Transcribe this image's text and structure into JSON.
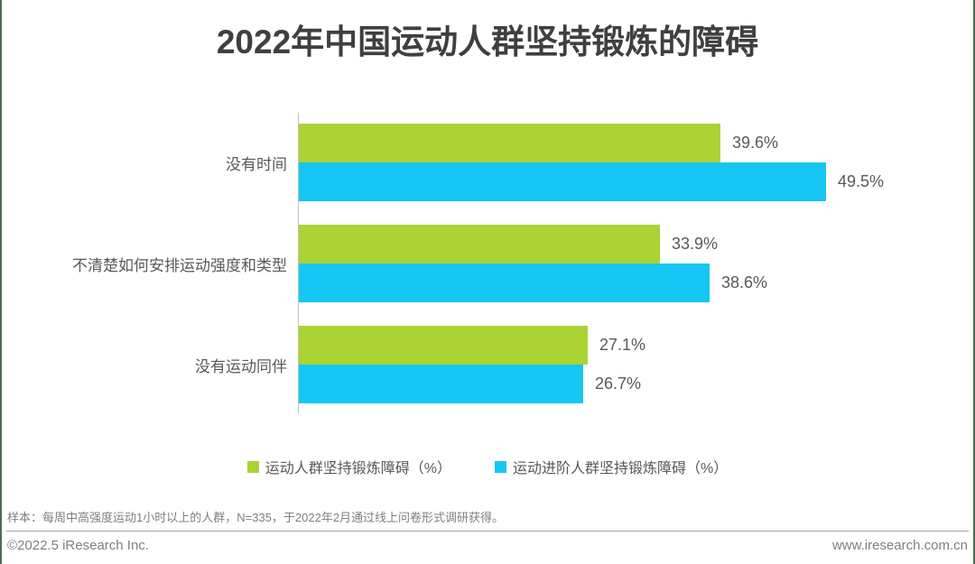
{
  "title": "2022年中国运动人群坚持锻炼的障碍",
  "colors": {
    "series_green": "#aad334",
    "series_blue": "#15c7f2",
    "title_text": "#3f3f3f",
    "label_text": "#595959",
    "muted_text": "#7f7f7f",
    "axis_line": "#bfbfbf",
    "separator_line": "#a6a6a6",
    "page_edge": "#4d6b56"
  },
  "chart_data": {
    "type": "bar",
    "orientation": "horizontal",
    "title": "2022年中国运动人群坚持锻炼的障碍",
    "categories": [
      "没有时间",
      "不清楚如何安排运动强度和类型",
      "没有运动同伴"
    ],
    "series": [
      {
        "name": "运动人群坚持锻炼障碍（%）",
        "color": "#aad334",
        "values": [
          39.6,
          33.9,
          27.1
        ]
      },
      {
        "name": "运动进阶人群坚持锻炼障碍（%）",
        "color": "#15c7f2",
        "values": [
          49.5,
          38.6,
          26.7
        ]
      }
    ],
    "value_suffix": "%",
    "xlim": [
      0,
      52
    ],
    "grid": false,
    "legend_position": "bottom",
    "data_labels": true
  },
  "footer": {
    "note": "样本：每周中高强度运动1小时以上的人群，N=335，于2022年2月通过线上问卷形式调研获得。",
    "copyright": "©2022.5 iResearch Inc.",
    "website": "www.iresearch.com.cn"
  }
}
